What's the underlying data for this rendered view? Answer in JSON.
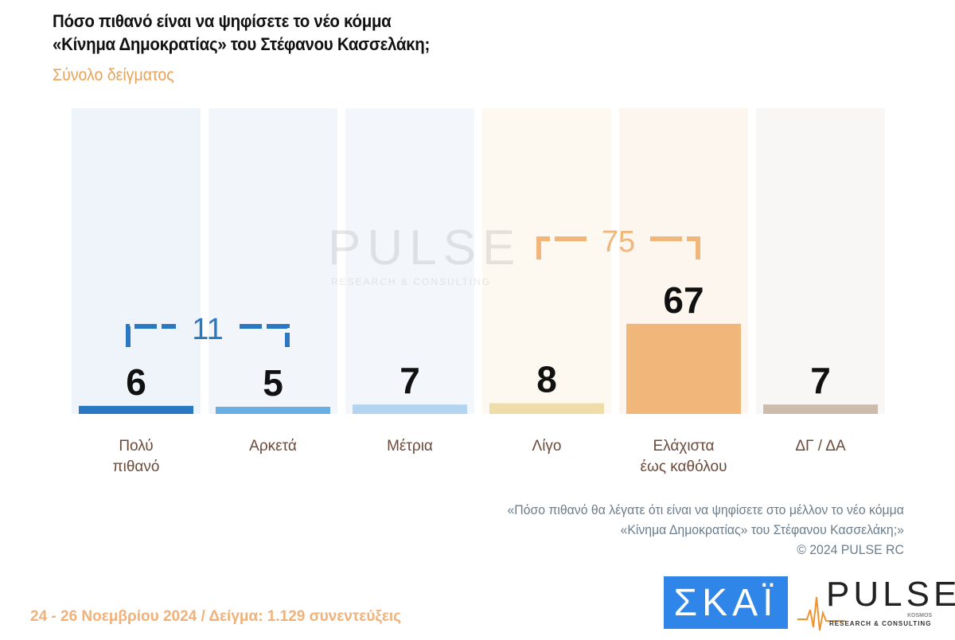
{
  "header": {
    "title_line1": "Πόσο πιθανό είναι να ψηφίσετε το νέο κόμμα",
    "title_line2": "«Κίνημα Δημοκρατίας» του Στέφανου Κασσελάκη;",
    "subtitle": "Σύνολο δείγματος"
  },
  "chart_data": {
    "type": "bar",
    "title": "Πόσο πιθανό είναι να ψηφίσετε το νέο κόμμα «Κίνημα Δημοκρατίας» του Στέφανου Κασσελάκη;",
    "categories": [
      [
        "Πολύ",
        "πιθανό"
      ],
      [
        "Αρκετά"
      ],
      [
        "Μέτρια"
      ],
      [
        "Λίγο"
      ],
      [
        "Ελάχιστα",
        "έως καθόλου"
      ],
      [
        "ΔΓ / ΔΑ"
      ]
    ],
    "values": [
      6,
      5,
      7,
      8,
      67,
      7
    ],
    "value_labels": [
      "6",
      "5",
      "7",
      "8",
      "67",
      "7"
    ],
    "ylim": [
      0,
      100
    ],
    "bar_colors": [
      "#2a78c2",
      "#6aaee6",
      "#b3d4f1",
      "#eedcaa",
      "#f0b67a",
      "#cbbcac"
    ],
    "column_bg_colors": [
      "#eef4fa",
      "#f2f6fb",
      "#f3f7fb",
      "#fdf8f0",
      "#fdf6ee",
      "#f8f7f6"
    ],
    "groups": [
      {
        "label": "11",
        "from": 0,
        "to": 1,
        "color": "#2a78c2"
      },
      {
        "label": "75",
        "from": 3,
        "to": 4,
        "color": "#f0b67a"
      }
    ]
  },
  "note": {
    "line1": "«Πόσο πιθανό θα λέγατε ότι είναι να ψηφίσετε στο μέλλον το νέο κόμμα",
    "line2": "«Κίνημα Δημοκρατίας» του Στέφανου Κασσελάκη;»",
    "copyright": "©  2024  PULSE RC"
  },
  "footer": "24 - 26 Νοεμβρίου 2024  /  Δείγμα:  1.129 συνεντεύξεις",
  "logos": {
    "skai": "ΣΚΑΪ",
    "pulse": "PULSE",
    "pulse_sub": "RESEARCH & CONSULTING",
    "pulse_kosmos": "KOSMOS"
  },
  "watermark": {
    "word": "PULSE",
    "sub": "RESEARCH & CONSULTING"
  }
}
